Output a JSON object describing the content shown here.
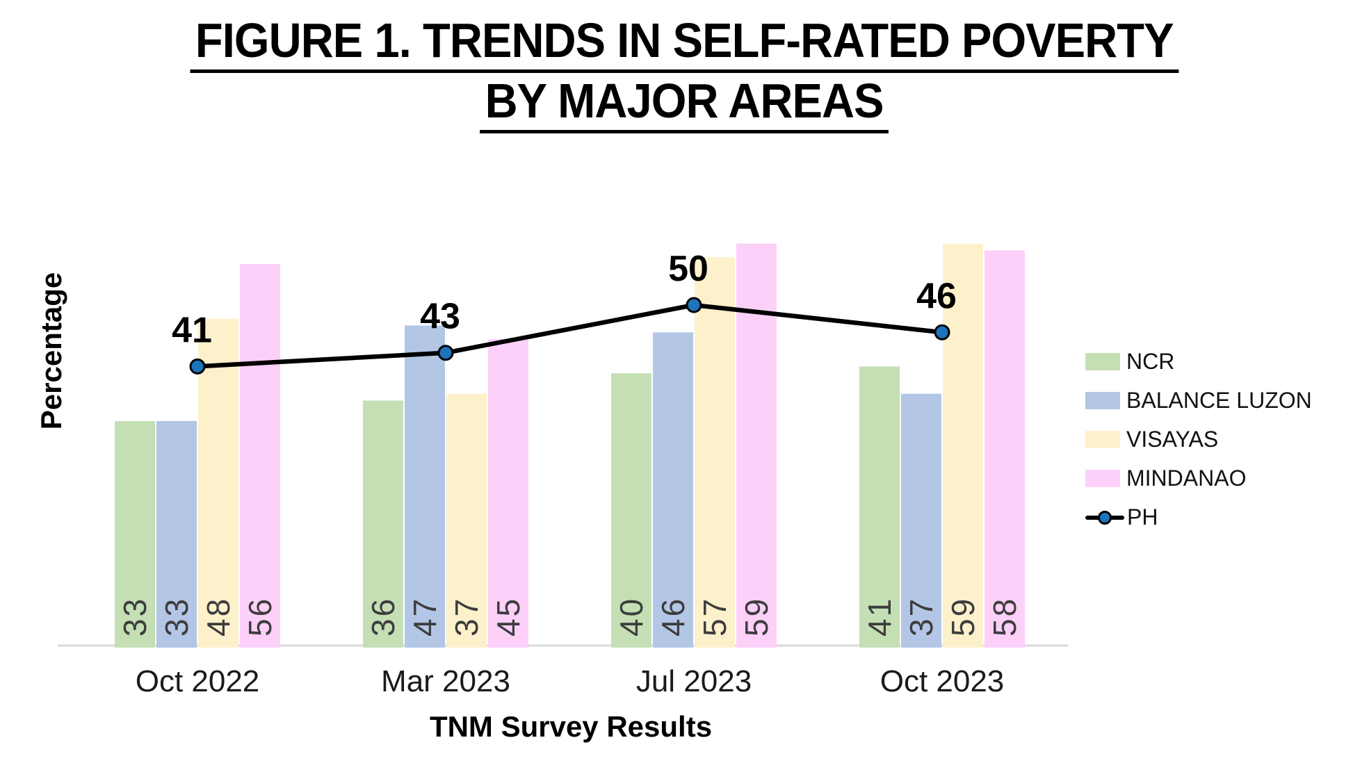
{
  "title": {
    "line1": "FIGURE 1. TRENDS IN SELF-RATED POVERTY",
    "line2": "BY MAJOR AREAS"
  },
  "chart_data": {
    "type": "bar",
    "subtype": "grouped-bars-with-line-overlay",
    "categories": [
      "Oct 2022",
      "Mar 2023",
      "Jul 2023",
      "Oct 2023"
    ],
    "series": [
      {
        "name": "NCR",
        "type": "bar",
        "color": "#c5dfb5",
        "values": [
          33,
          36,
          40,
          41
        ]
      },
      {
        "name": "BALANCE LUZON",
        "type": "bar",
        "color": "#b3c6e6",
        "values": [
          33,
          47,
          46,
          37
        ]
      },
      {
        "name": "VISAYAS",
        "type": "bar",
        "color": "#fdf1cc",
        "values": [
          48,
          37,
          57,
          59
        ]
      },
      {
        "name": "MINDANAO",
        "type": "bar",
        "color": "#fcd0f8",
        "values": [
          56,
          45,
          59,
          58
        ]
      },
      {
        "name": "PH",
        "type": "line",
        "color": "#000000",
        "marker_color": "#1c74bb",
        "values": [
          41,
          43,
          50,
          46
        ]
      }
    ],
    "title": "FIGURE 1. TRENDS IN SELF-RATED POVERTY BY MAJOR AREAS",
    "xlabel": "TNM Survey Results",
    "ylabel": "Percentage",
    "ylim": [
      0,
      62
    ],
    "grid": false,
    "legend_position": "right",
    "bar_value_labels": "rotated 90deg, inside bar bottoms",
    "line_value_labels": "above markers"
  },
  "colors": {
    "background": "#ffffff",
    "axis_line": "#d9d9d9",
    "bar_value_label": "#3d3d3d",
    "tick_label": "#1a1a1a",
    "line": "#000000",
    "marker_fill": "#1c74bb",
    "marker_stroke": "#000000",
    "text": "#000000"
  }
}
